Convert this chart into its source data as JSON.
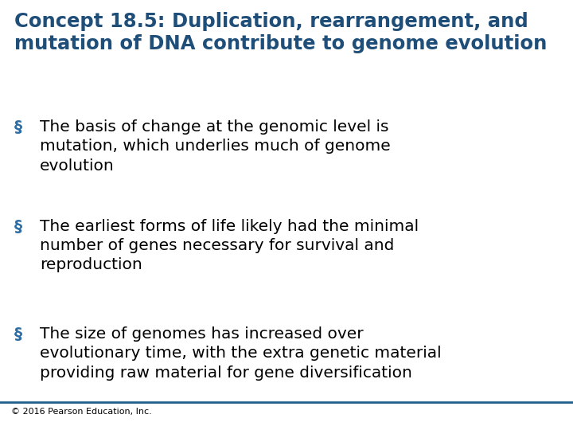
{
  "background_color": "#ffffff",
  "title_line1": "Concept 18.5: Duplication, rearrangement, and",
  "title_line2": "mutation of DNA contribute to genome evolution",
  "title_color": "#1F4E79",
  "bullet_color": "#2E6DA4",
  "text_color": "#000000",
  "bullet_points": [
    "The basis of change at the genomic level is\nmutation, which underlies much of genome\nevolution",
    "The earliest forms of life likely had the minimal\nnumber of genes necessary for survival and\nreproduction",
    "The size of genomes has increased over\nevolutionary time, with the extra genetic material\nproviding raw material for gene diversification"
  ],
  "footer_text": "© 2016 Pearson Education, Inc.",
  "footer_color": "#000000",
  "separator_color": "#1F5F8B",
  "title_fontsize": 17.5,
  "bullet_fontsize": 14.5,
  "footer_fontsize": 8
}
